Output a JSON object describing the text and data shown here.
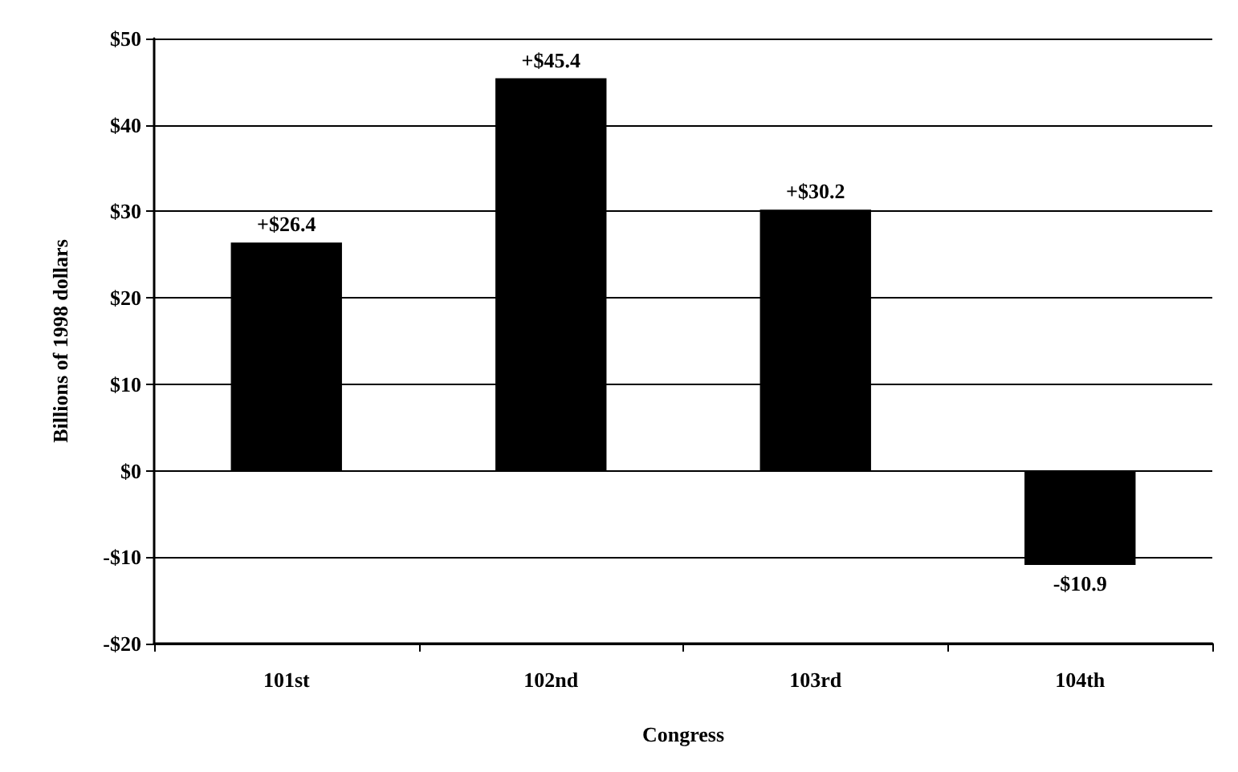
{
  "chart_data": {
    "type": "bar",
    "xlabel": "Congress",
    "ylabel": "Billions of 1998 dollars",
    "categories": [
      "101st",
      "102nd",
      "103rd",
      "104th"
    ],
    "values": [
      26.4,
      45.4,
      30.2,
      -10.9
    ],
    "color": "#000000",
    "value_labels": [
      "+$26.4",
      "+$45.4",
      "+$30.2",
      "-$10.9"
    ],
    "ylim": [
      -20,
      50
    ],
    "yticks": [
      {
        "value": -20,
        "label": "-$20"
      },
      {
        "value": -10,
        "label": "-$10"
      },
      {
        "value": 0,
        "label": "$0"
      },
      {
        "value": 10,
        "label": "$10"
      },
      {
        "value": 20,
        "label": "$20"
      },
      {
        "value": 30,
        "label": "$30"
      },
      {
        "value": 40,
        "label": "$40"
      },
      {
        "value": 50,
        "label": "$50"
      }
    ],
    "grid": "y"
  }
}
